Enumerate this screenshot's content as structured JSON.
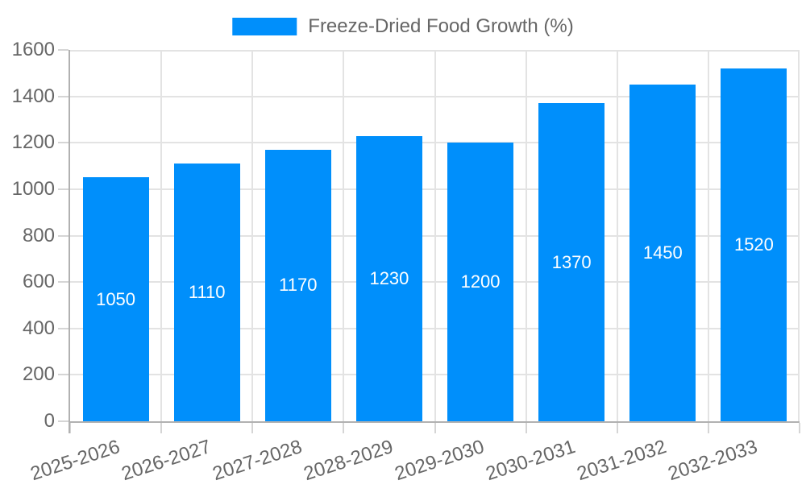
{
  "chart_data": {
    "type": "bar",
    "categories": [
      "2025-2026",
      "2026-2027",
      "2027-2028",
      "2028-2029",
      "2029-2030",
      "2030-2031",
      "2031-2032",
      "2032-2033"
    ],
    "series": [
      {
        "name": "Freeze-Dried Food Growth (%)",
        "values": [
          1050,
          1110,
          1170,
          1230,
          1200,
          1370,
          1450,
          1520
        ]
      }
    ],
    "xlabel": "",
    "ylabel": "",
    "ylim": [
      0,
      1600
    ],
    "yticks": [
      0,
      200,
      400,
      600,
      800,
      1000,
      1200,
      1400,
      1600
    ],
    "grid": true,
    "legend_position": "top-center",
    "x_label_rotation_deg": -18,
    "value_labels_shown": true,
    "colors": {
      "bar": "#008FFB",
      "axis_text": "#666666",
      "value_text": "#ffffff",
      "grid": "#e3e3e3",
      "axis_line": "#b1b1b1",
      "tick": "#d5d5d5",
      "background": "#ffffff"
    }
  }
}
